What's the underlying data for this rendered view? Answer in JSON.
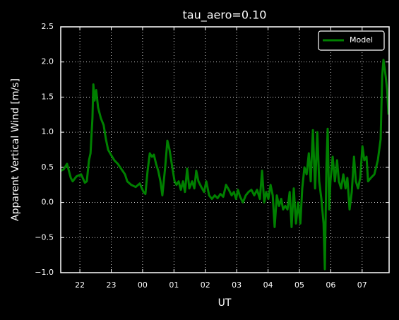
{
  "chart_data": {
    "type": "line",
    "title": "tau_aero=0.10",
    "xlabel": "UT",
    "ylabel": "Apparent Vertical Wind [m/s]",
    "x": [
      21.39,
      21.48,
      21.59,
      21.71,
      21.77,
      21.89,
      22.04,
      22.16,
      22.22,
      22.29,
      22.34,
      22.4,
      22.43,
      22.47,
      22.52,
      22.58,
      22.67,
      22.76,
      22.83,
      22.9,
      22.99,
      23.1,
      23.21,
      23.33,
      23.44,
      23.51,
      23.64,
      23.78,
      23.91,
      24.03,
      24.09,
      24.16,
      24.23,
      24.3,
      24.36,
      24.43,
      24.5,
      24.57,
      24.63,
      24.72,
      24.79,
      24.86,
      24.93,
      25.02,
      25.08,
      25.15,
      25.22,
      25.29,
      25.35,
      25.42,
      25.49,
      25.58,
      25.65,
      25.71,
      25.78,
      25.87,
      25.96,
      26.03,
      26.12,
      26.21,
      26.3,
      26.39,
      26.48,
      26.57,
      26.66,
      26.75,
      26.84,
      26.91,
      26.98,
      27.04,
      27.11,
      27.2,
      27.29,
      27.38,
      27.47,
      27.56,
      27.65,
      27.74,
      27.81,
      27.88,
      27.94,
      28.01,
      28.08,
      28.15,
      28.21,
      28.28,
      28.35,
      28.42,
      28.48,
      28.55,
      28.62,
      28.69,
      28.75,
      28.82,
      28.89,
      28.96,
      29.03,
      29.09,
      29.16,
      29.23,
      29.3,
      29.36,
      29.43,
      29.5,
      29.57,
      29.63,
      29.7,
      29.77,
      29.81,
      29.86,
      29.9,
      29.95,
      29.99,
      30.06,
      30.13,
      30.2,
      30.26,
      30.33,
      30.4,
      30.47,
      30.53,
      30.6,
      30.67,
      30.74,
      30.8,
      30.87,
      30.94,
      31.01,
      31.07,
      31.14,
      31.19,
      31.28,
      31.39,
      31.5,
      31.59,
      31.64,
      31.68,
      31.75,
      31.8,
      31.84
    ],
    "series": [
      {
        "name": "Model",
        "color": "#008000",
        "values": [
          0.45,
          0.47,
          0.55,
          0.35,
          0.3,
          0.37,
          0.4,
          0.28,
          0.3,
          0.6,
          0.7,
          1.2,
          1.68,
          1.45,
          1.6,
          1.35,
          1.2,
          1.1,
          0.9,
          0.75,
          0.68,
          0.6,
          0.55,
          0.47,
          0.4,
          0.3,
          0.25,
          0.22,
          0.27,
          0.15,
          0.12,
          0.45,
          0.7,
          0.65,
          0.68,
          0.55,
          0.45,
          0.3,
          0.1,
          0.5,
          0.88,
          0.75,
          0.55,
          0.3,
          0.25,
          0.3,
          0.18,
          0.3,
          0.15,
          0.48,
          0.2,
          0.3,
          0.2,
          0.45,
          0.3,
          0.22,
          0.15,
          0.3,
          0.1,
          0.05,
          0.1,
          0.06,
          0.12,
          0.08,
          0.25,
          0.18,
          0.1,
          0.15,
          0.05,
          0.18,
          0.08,
          0.0,
          0.1,
          0.15,
          0.18,
          0.1,
          0.18,
          0.05,
          0.45,
          0.0,
          0.15,
          0.05,
          0.25,
          0.1,
          -0.35,
          0.1,
          -0.05,
          0.05,
          -0.1,
          -0.05,
          -0.1,
          0.15,
          -0.35,
          0.2,
          -0.3,
          0.0,
          -0.3,
          0.2,
          0.5,
          0.4,
          0.7,
          0.3,
          1.03,
          0.2,
          1.0,
          0.3,
          0.05,
          -0.3,
          -0.95,
          0.5,
          1.05,
          -0.1,
          0.3,
          0.65,
          0.3,
          0.6,
          0.3,
          0.2,
          0.4,
          0.2,
          0.35,
          -0.1,
          0.15,
          0.65,
          0.3,
          0.2,
          0.35,
          0.8,
          0.6,
          0.65,
          0.3,
          0.35,
          0.4,
          0.6,
          0.9,
          1.8,
          2.03,
          1.8,
          1.6,
          1.25
        ]
      }
    ],
    "xlim": [
      21.39,
      31.86
    ],
    "ylim": [
      -1.0,
      2.5
    ],
    "xticks": [
      22,
      23,
      {
        "value": 24,
        "label": "00"
      },
      {
        "value": 25,
        "label": "01"
      },
      {
        "value": 26,
        "label": "02"
      },
      {
        "value": 27,
        "label": "03"
      },
      {
        "value": 28,
        "label": "04"
      },
      {
        "value": 29,
        "label": "05"
      },
      {
        "value": 30,
        "label": "06"
      },
      {
        "value": 31,
        "label": "07"
      }
    ],
    "yticks": [
      {
        "value": -1.0,
        "label": "−1.0"
      },
      {
        "value": -0.5,
        "label": "−0.5"
      },
      {
        "value": 0.0,
        "label": "0.0"
      },
      0.5,
      {
        "value": 1.0,
        "label": "1.0"
      },
      1.5,
      {
        "value": 2.0,
        "label": "2.0"
      },
      2.5
    ],
    "grid": true,
    "legend": "upper right"
  }
}
